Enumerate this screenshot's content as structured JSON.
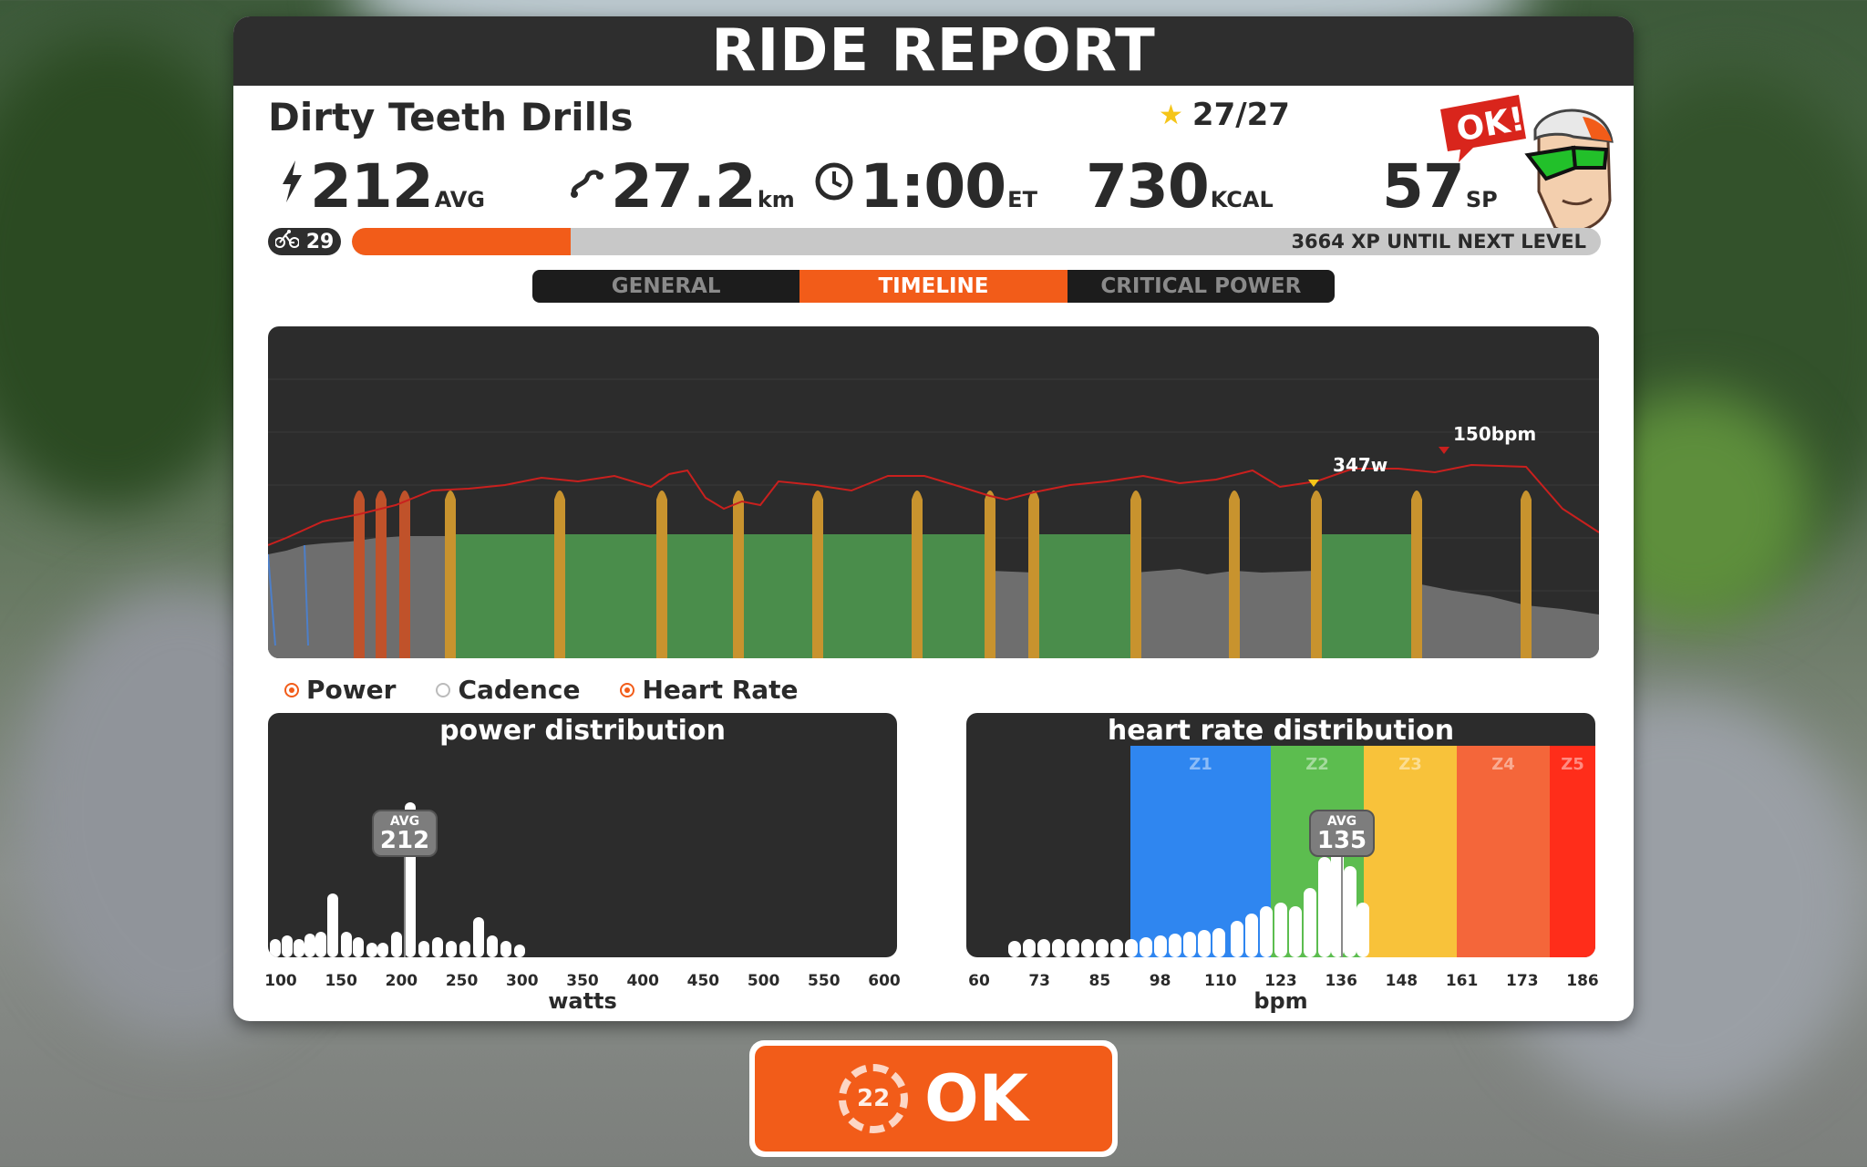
{
  "header": {
    "title": "RIDE REPORT"
  },
  "workout": {
    "name": "Dirty Teeth Drills",
    "rating": "27/27"
  },
  "stats": {
    "power": {
      "value": "212",
      "unit": "AVG"
    },
    "distance": {
      "value": "27.2",
      "unit": "km"
    },
    "time": {
      "value": "1:00",
      "unit": "ET"
    },
    "calories": {
      "value": "730",
      "unit": "KCAL"
    },
    "sweat_points": {
      "value": "57",
      "unit": "SP"
    }
  },
  "mascot": {
    "speech": "OK!"
  },
  "level": {
    "number": "29",
    "xp_text": "3664 XP UNTIL NEXT LEVEL",
    "progress": 0.175
  },
  "tabs": [
    {
      "label": "GENERAL",
      "active": false
    },
    {
      "label": "TIMELINE",
      "active": true
    },
    {
      "label": "CRITICAL POWER",
      "active": false
    }
  ],
  "timeline": {
    "max_power_label": "347w",
    "max_hr_label": "150bpm"
  },
  "legend": [
    {
      "label": "Power",
      "checked": true
    },
    {
      "label": "Cadence",
      "checked": false
    },
    {
      "label": "Heart Rate",
      "checked": true
    }
  ],
  "power_distribution": {
    "title": "power distribution",
    "avg_label": "AVG",
    "avg_value": "212",
    "ticks": [
      "100",
      "150",
      "200",
      "250",
      "300",
      "350",
      "400",
      "450",
      "500",
      "550",
      "600"
    ],
    "xlabel": "watts"
  },
  "hr_distribution": {
    "title": "heart rate distribution",
    "avg_label": "AVG",
    "avg_value": "135",
    "ticks": [
      "60",
      "73",
      "85",
      "98",
      "110",
      "123",
      "136",
      "148",
      "161",
      "173",
      "186"
    ],
    "zones": [
      "Z1",
      "Z2",
      "Z3",
      "Z4",
      "Z5"
    ],
    "zone_colors": [
      "#2f86f0",
      "#5cbd4f",
      "#f8c23a",
      "#f4663a",
      "#ff2d1a"
    ],
    "xlabel": "bpm"
  },
  "ok_button": {
    "label": "OK",
    "countdown": "22"
  },
  "colors": {
    "accent": "#f25c19",
    "dark": "#2c2c2c"
  }
}
